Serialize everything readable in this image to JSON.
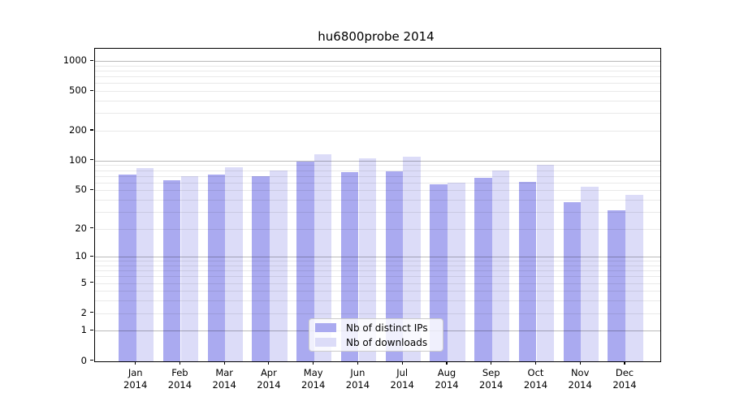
{
  "title": "hu6800probe 2014",
  "colors": {
    "distinct_ips_bar": "#aaaaf0",
    "downloads_bar": "#dcdcf8",
    "axis_spine": "#000000",
    "grid_major": "rgba(0,0,0,0.27)",
    "grid_minor": "rgba(0,0,0,0.085)",
    "legend_border": "#cccccc"
  },
  "legend": {
    "items": [
      {
        "label": "Nb of distinct IPs",
        "series": "distinct_ips"
      },
      {
        "label": "Nb of downloads",
        "series": "downloads"
      }
    ]
  },
  "y_axis": {
    "tick_values": [
      0,
      1,
      2,
      5,
      10,
      20,
      50,
      100,
      200,
      500,
      1000
    ],
    "tick_labels": [
      "0",
      "1",
      "2",
      "5",
      "10",
      "20",
      "50",
      "100",
      "200",
      "500",
      "1000"
    ]
  },
  "x_axis": {
    "months": [
      "Jan",
      "Feb",
      "Mar",
      "Apr",
      "May",
      "Jun",
      "Jul",
      "Aug",
      "Sep",
      "Oct",
      "Nov",
      "Dec"
    ],
    "year": "2014"
  },
  "chart_data": {
    "type": "bar",
    "title": "hu6800probe 2014",
    "categories": [
      "Jan 2014",
      "Feb 2014",
      "Mar 2014",
      "Apr 2014",
      "May 2014",
      "Jun 2014",
      "Jul 2014",
      "Aug 2014",
      "Sep 2014",
      "Oct 2014",
      "Nov 2014",
      "Dec 2014"
    ],
    "series": [
      {
        "name": "Nb of distinct IPs",
        "color": "#aaaaf0",
        "values": [
          72,
          63,
          72,
          69,
          97,
          76,
          78,
          57,
          67,
          61,
          38,
          31
        ]
      },
      {
        "name": "Nb of downloads",
        "color": "#dcdcf8",
        "values": [
          84,
          70,
          86,
          79,
          115,
          106,
          110,
          60,
          80,
          90,
          54,
          45
        ]
      }
    ],
    "xlabel": "",
    "ylabel": "",
    "yscale": "log10(value+1)",
    "ylim": [
      0,
      1300
    ],
    "y_ticks": [
      0,
      1,
      2,
      5,
      10,
      20,
      50,
      100,
      200,
      500,
      1000
    ],
    "grid": true,
    "grid_major_at": [
      1,
      10,
      100,
      1000
    ],
    "legend_position": "lower center inside plot"
  }
}
